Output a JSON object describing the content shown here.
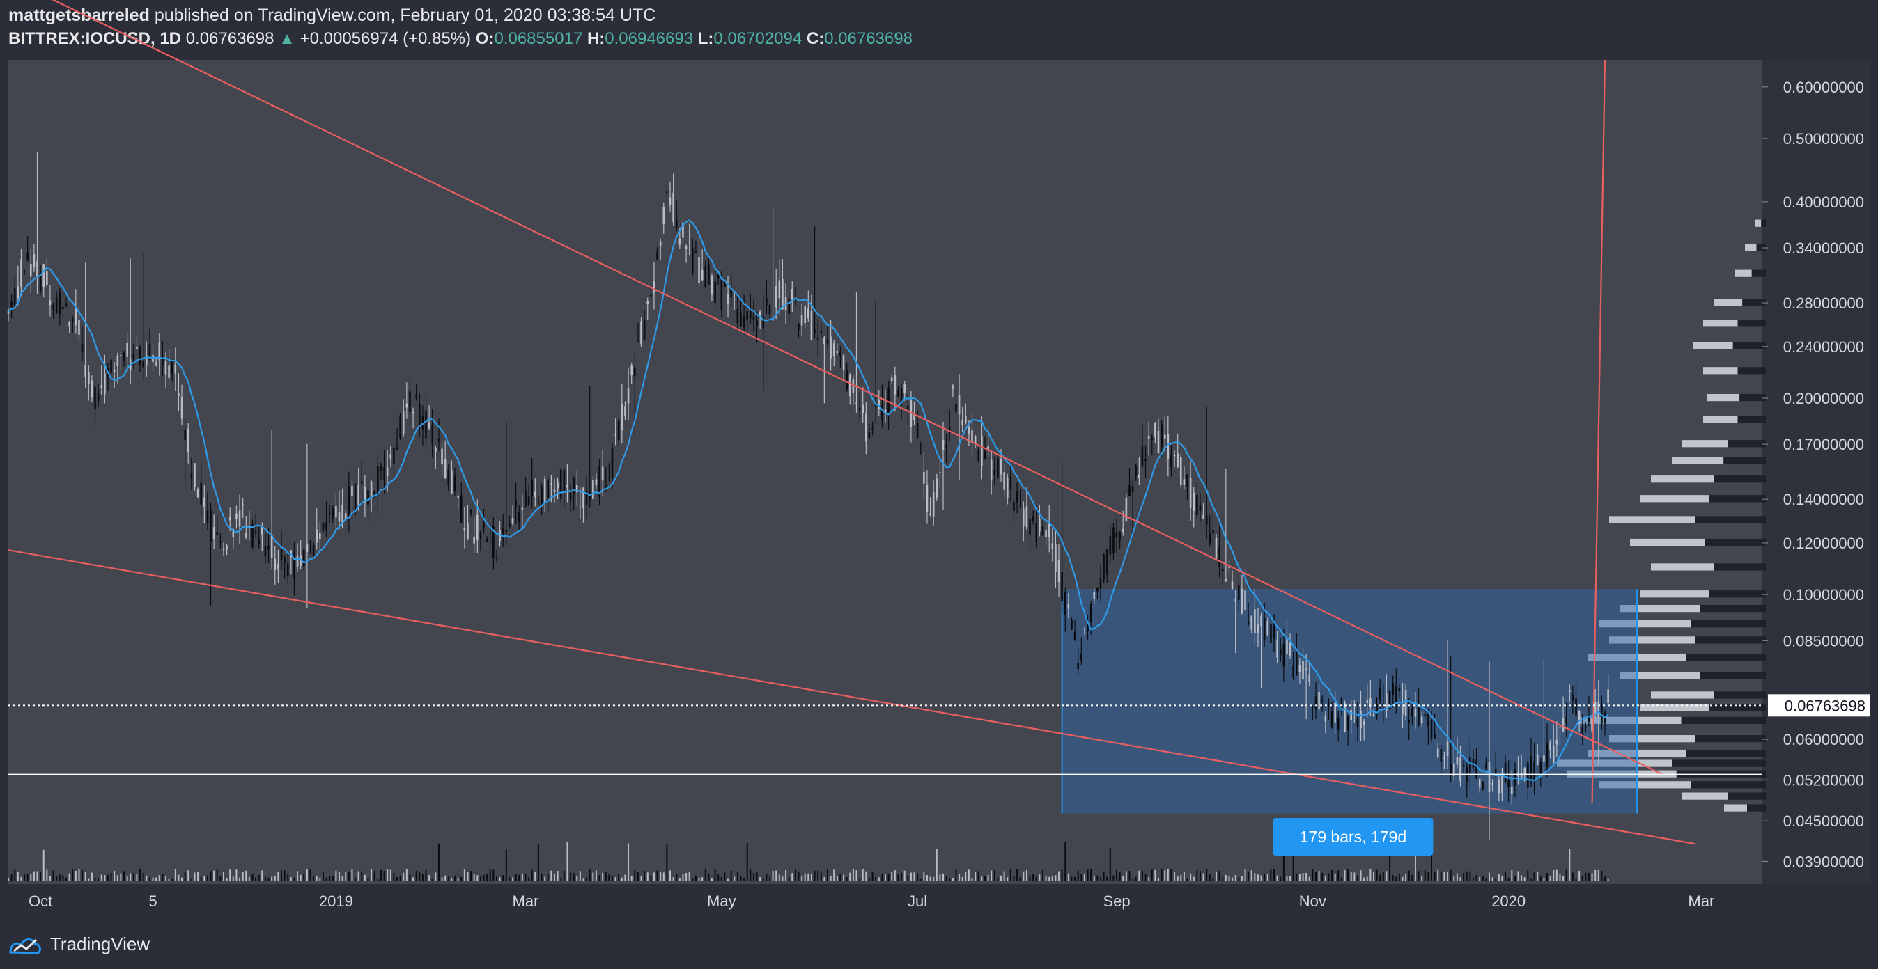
{
  "header": {
    "author": "mattgetsbarreled",
    "published_text": "published on TradingView.com, February 01, 2020 03:38:54 UTC",
    "symbol": "BITTREX:IOCUSD, 1D",
    "last": "0.06763698",
    "change_arrow": "▲",
    "change": "+0.00056974 (+0.85%)",
    "o_label": "O:",
    "o": "0.06855017",
    "h_label": "H:",
    "h": "0.06946693",
    "l_label": "L:",
    "l": "0.06702094",
    "c_label": "C:",
    "c": "0.06763698"
  },
  "footer": {
    "brand": "TradingView"
  },
  "colors": {
    "background": "#43464f",
    "frame": "#2b2e39",
    "trendline": "#e85f5f",
    "ma": "#2f9be8",
    "box": "#2e6ab0",
    "up_candle": "#b9bcc4",
    "down_candle": "#0b0c10",
    "label_bg": "#2196f3"
  },
  "chart_data": {
    "type": "candlestick",
    "symbol": "BITTREX:IOCUSD",
    "interval": "1D",
    "scale": "log",
    "ylim": [
      0.036,
      0.66
    ],
    "y_ticks": [
      "0.60000000",
      "0.50000000",
      "0.40000000",
      "0.34000000",
      "0.28000000",
      "0.24000000",
      "0.20000000",
      "0.17000000",
      "0.14000000",
      "0.12000000",
      "0.10000000",
      "0.08500000",
      "0.06000000",
      "0.05200000",
      "0.04500000",
      "0.03900000"
    ],
    "y_tick_values": [
      0.6,
      0.5,
      0.4,
      0.34,
      0.28,
      0.24,
      0.2,
      0.17,
      0.14,
      0.12,
      0.1,
      0.085,
      0.06,
      0.052,
      0.045,
      0.039
    ],
    "x_start": "2018-09-21",
    "x_end": "2020-03-20",
    "x_ticks": [
      {
        "label": "Oct",
        "date": "2018-10-01"
      },
      {
        "label": "5",
        "date": "2018-11-05"
      },
      {
        "label": "2019",
        "date": "2019-01-01"
      },
      {
        "label": "Mar",
        "date": "2019-03-01"
      },
      {
        "label": "May",
        "date": "2019-05-01"
      },
      {
        "label": "Jul",
        "date": "2019-07-01"
      },
      {
        "label": "Sep",
        "date": "2019-09-01"
      },
      {
        "label": "Nov",
        "date": "2019-11-01"
      },
      {
        "label": "2020",
        "date": "2020-01-01"
      },
      {
        "label": "Mar",
        "date": "2020-03-01"
      }
    ],
    "price_anchors": [
      [
        "2018-09-21",
        0.27
      ],
      [
        "2018-09-27",
        0.33
      ],
      [
        "2018-10-05",
        0.29
      ],
      [
        "2018-10-12",
        0.26
      ],
      [
        "2018-10-18",
        0.2
      ],
      [
        "2018-10-25",
        0.23
      ],
      [
        "2018-11-05",
        0.24
      ],
      [
        "2018-11-12",
        0.22
      ],
      [
        "2018-11-18",
        0.15
      ],
      [
        "2018-11-25",
        0.12
      ],
      [
        "2018-12-03",
        0.13
      ],
      [
        "2018-12-10",
        0.12
      ],
      [
        "2018-12-17",
        0.11
      ],
      [
        "2018-12-26",
        0.12
      ],
      [
        "2019-01-05",
        0.14
      ],
      [
        "2019-01-15",
        0.15
      ],
      [
        "2019-01-25",
        0.2
      ],
      [
        "2019-02-02",
        0.17
      ],
      [
        "2019-02-10",
        0.13
      ],
      [
        "2019-02-20",
        0.12
      ],
      [
        "2019-03-01",
        0.14
      ],
      [
        "2019-03-10",
        0.15
      ],
      [
        "2019-03-20",
        0.14
      ],
      [
        "2019-03-28",
        0.16
      ],
      [
        "2019-04-05",
        0.24
      ],
      [
        "2019-04-10",
        0.29
      ],
      [
        "2019-04-14",
        0.42
      ],
      [
        "2019-04-20",
        0.34
      ],
      [
        "2019-04-28",
        0.3
      ],
      [
        "2019-05-10",
        0.26
      ],
      [
        "2019-05-20",
        0.29
      ],
      [
        "2019-05-28",
        0.26
      ],
      [
        "2019-06-05",
        0.24
      ],
      [
        "2019-06-15",
        0.18
      ],
      [
        "2019-06-25",
        0.21
      ],
      [
        "2019-07-01",
        0.18
      ],
      [
        "2019-07-05",
        0.13
      ],
      [
        "2019-07-12",
        0.2
      ],
      [
        "2019-07-20",
        0.17
      ],
      [
        "2019-07-28",
        0.15
      ],
      [
        "2019-08-05",
        0.13
      ],
      [
        "2019-08-12",
        0.12
      ],
      [
        "2019-08-20",
        0.08
      ],
      [
        "2019-08-28",
        0.11
      ],
      [
        "2019-09-05",
        0.14
      ],
      [
        "2019-09-12",
        0.18
      ],
      [
        "2019-09-20",
        0.16
      ],
      [
        "2019-09-28",
        0.13
      ],
      [
        "2019-10-05",
        0.11
      ],
      [
        "2019-10-15",
        0.09
      ],
      [
        "2019-10-25",
        0.08
      ],
      [
        "2019-11-05",
        0.067
      ],
      [
        "2019-11-15",
        0.064
      ],
      [
        "2019-11-25",
        0.07
      ],
      [
        "2019-12-05",
        0.065
      ],
      [
        "2019-12-15",
        0.055
      ],
      [
        "2019-12-25",
        0.053
      ],
      [
        "2020-01-05",
        0.052
      ],
      [
        "2020-01-15",
        0.058
      ],
      [
        "2020-01-20",
        0.07
      ],
      [
        "2020-01-25",
        0.063
      ],
      [
        "2020-02-01",
        0.0676
      ]
    ],
    "current_price": 0.06763698,
    "current_price_label": "0.06763698",
    "horizontal_line": 0.053,
    "trendlines": [
      {
        "from": [
          "2018-09-07",
          0.95
        ],
        "to": [
          "2020-02-18",
          0.053
        ]
      },
      {
        "from": [
          "2018-09-21",
          0.117
        ],
        "to": [
          "2020-02-28",
          0.0415
        ]
      },
      {
        "from": [
          "2020-01-27",
          0.048
        ],
        "to": [
          "2020-01-31",
          0.66
        ]
      }
    ],
    "date_range": {
      "start": "2019-08-15",
      "end": "2020-02-10",
      "price_low": 0.0462,
      "price_high": 0.102,
      "label": "179 bars, 179d"
    },
    "volume_profile": {
      "price_levels": [
        0.37,
        0.34,
        0.31,
        0.28,
        0.26,
        0.24,
        0.22,
        0.2,
        0.185,
        0.17,
        0.16,
        0.15,
        0.14,
        0.13,
        0.12,
        0.11,
        0.1,
        0.095,
        0.09,
        0.085,
        0.08,
        0.075,
        0.07,
        0.067,
        0.064,
        0.06,
        0.057,
        0.055,
        0.053,
        0.051,
        0.049,
        0.047
      ],
      "relative_volume": [
        0.05,
        0.1,
        0.15,
        0.25,
        0.3,
        0.35,
        0.3,
        0.28,
        0.3,
        0.4,
        0.45,
        0.55,
        0.6,
        0.75,
        0.65,
        0.55,
        0.6,
        0.7,
        0.8,
        0.75,
        0.85,
        0.7,
        0.55,
        0.6,
        0.9,
        0.75,
        0.85,
        1.0,
        0.95,
        0.8,
        0.4,
        0.2
      ]
    }
  }
}
